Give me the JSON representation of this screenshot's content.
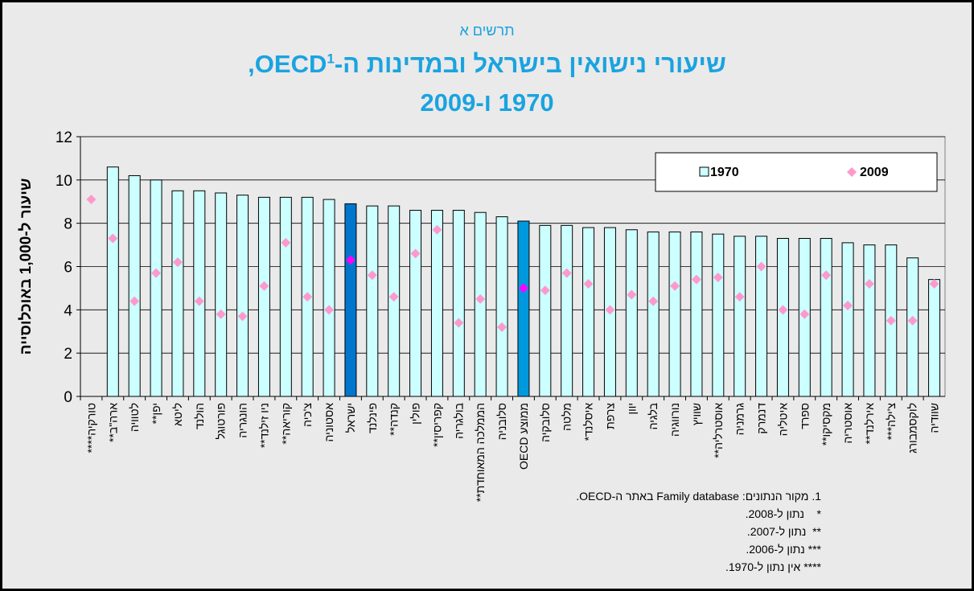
{
  "chart_data": {
    "type": "bar",
    "kicker": "תרשים א",
    "title": "שיעורי נישואין בישראל ובמדינות ה-OECD",
    "title_note": "1",
    "title_suffix": ",",
    "title_line2": "1970 ו-2009",
    "ylabel": "שיעור ל-1,000 באוכלוסייה",
    "ylim": [
      0,
      12
    ],
    "yticks": [
      0,
      2,
      4,
      6,
      8,
      10,
      12
    ],
    "grid": true,
    "legend": "top-right",
    "categories": [
      "טורקיה****",
      "ארה\"ב**",
      "לטוויה",
      "יפן**",
      "ליטא",
      "הולנד",
      "פורטוגל",
      "הונגריה",
      "ניו זילנד**",
      "קוריאה**",
      "צ'כיה",
      "אסטוניה",
      "ישראל",
      "פינלנד",
      "קנדה**",
      "פולין",
      "קפריסין**",
      "בולגריה",
      "הממלכה המאוחדת**",
      "סלובניה",
      "ממוצע OECD",
      "סלובקיה",
      "מלטה",
      "איסלנד*",
      "צרפת",
      "יוון",
      "בלגיה",
      "נורווגיה",
      "שוויץ",
      "אוסטרליה**",
      "גרמניה",
      "דנמרק",
      "איטליה",
      "ספרד",
      "מקסיקו**",
      "אוסטריה",
      "אירלנד**",
      "צ'ילה***",
      "לוקסמבורג",
      "שוודיה"
    ],
    "series": [
      {
        "name": "1970",
        "type": "bar",
        "colors": [
          "#ccffff",
          "#ccffff",
          "#ccffff",
          "#ccffff",
          "#ccffff",
          "#ccffff",
          "#ccffff",
          "#ccffff",
          "#ccffff",
          "#ccffff",
          "#ccffff",
          "#ccffff",
          "#0077cc",
          "#ccffff",
          "#ccffff",
          "#ccffff",
          "#ccffff",
          "#ccffff",
          "#ccffff",
          "#ccffff",
          "#0099dd",
          "#ccffff",
          "#ccffff",
          "#ccffff",
          "#ccffff",
          "#ccffff",
          "#ccffff",
          "#ccffff",
          "#ccffff",
          "#ccffff",
          "#ccffff",
          "#ccffff",
          "#ccffff",
          "#ccffff",
          "#ccffff",
          "#ccffff",
          "#ccffff",
          "#ccffff",
          "#ccffff",
          "#ccffff"
        ],
        "values": [
          null,
          10.6,
          10.2,
          10.0,
          9.5,
          9.5,
          9.4,
          9.3,
          9.2,
          9.2,
          9.2,
          9.1,
          8.9,
          8.8,
          8.8,
          8.6,
          8.6,
          8.6,
          8.5,
          8.3,
          8.1,
          7.9,
          7.9,
          7.8,
          7.8,
          7.7,
          7.6,
          7.6,
          7.6,
          7.5,
          7.4,
          7.4,
          7.3,
          7.3,
          7.3,
          7.1,
          7.0,
          7.0,
          6.4,
          5.4
        ]
      },
      {
        "name": "2009",
        "type": "scatter",
        "colors": [
          "#ff99cc",
          "#ff99cc",
          "#ff99cc",
          "#ff99cc",
          "#ff99cc",
          "#ff99cc",
          "#ff99cc",
          "#ff99cc",
          "#ff99cc",
          "#ff99cc",
          "#ff99cc",
          "#ff99cc",
          "#ff00ff",
          "#ff99cc",
          "#ff99cc",
          "#ff99cc",
          "#ff99cc",
          "#ff99cc",
          "#ff99cc",
          "#ff99cc",
          "#ff00ff",
          "#ff99cc",
          "#ff99cc",
          "#ff99cc",
          "#ff99cc",
          "#ff99cc",
          "#ff99cc",
          "#ff99cc",
          "#ff99cc",
          "#ff99cc",
          "#ff99cc",
          "#ff99cc",
          "#ff99cc",
          "#ff99cc",
          "#ff99cc",
          "#ff99cc",
          "#ff99cc",
          "#ff99cc",
          "#ff99cc",
          "#ff99cc"
        ],
        "values": [
          9.1,
          7.3,
          4.4,
          5.7,
          6.2,
          4.4,
          3.8,
          3.7,
          5.1,
          7.1,
          4.6,
          4.0,
          6.3,
          5.6,
          4.6,
          6.6,
          7.7,
          3.4,
          4.5,
          3.2,
          5.0,
          4.9,
          5.7,
          5.2,
          4.0,
          4.7,
          4.4,
          5.1,
          5.4,
          5.5,
          4.6,
          6.0,
          4.0,
          3.8,
          5.6,
          4.2,
          5.2,
          3.5,
          3.5,
          5.2
        ]
      }
    ],
    "footnotes": [
      "1. מקור הנתונים: Family database באתר ה-OECD.",
      "*    נתון ל-2008.",
      "**  נתון ל-2007.",
      "*** נתון ל-2006.",
      "**** אין נתון ל-1970."
    ]
  }
}
